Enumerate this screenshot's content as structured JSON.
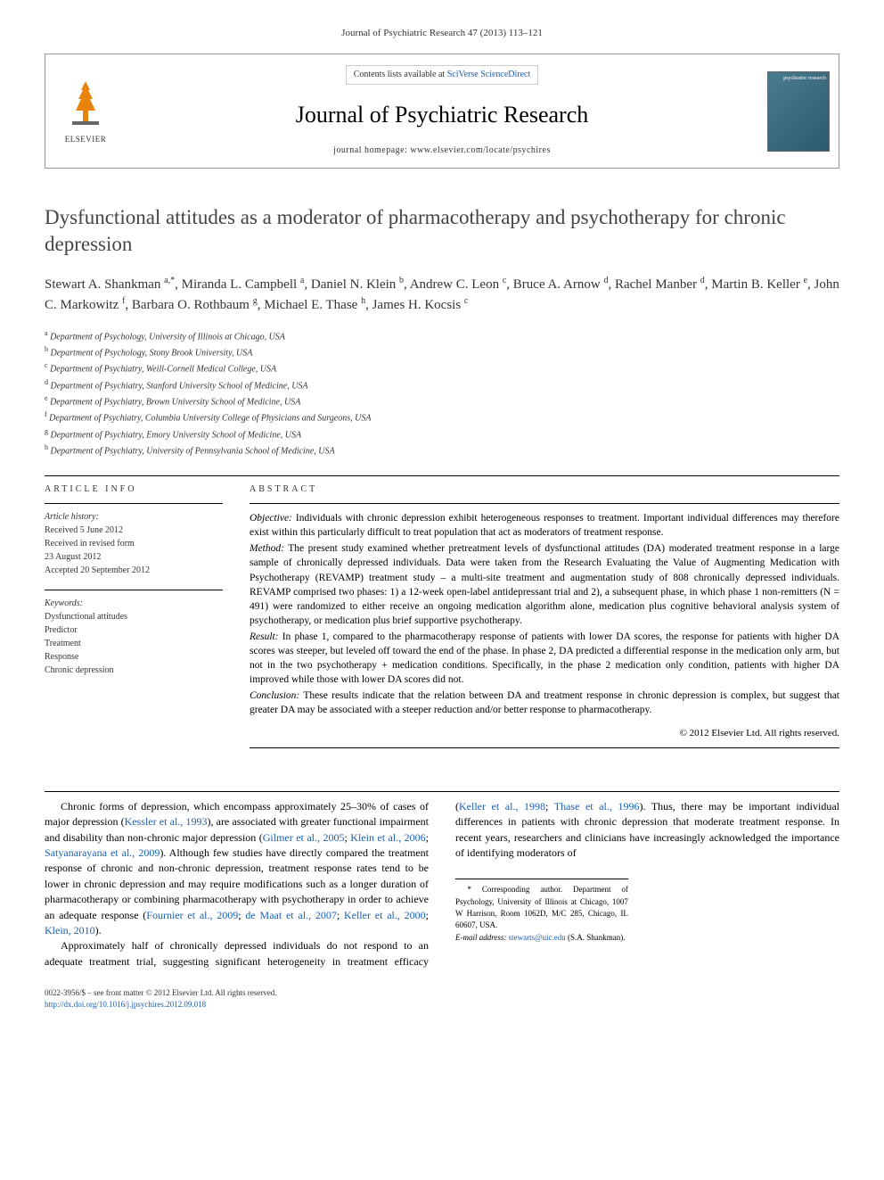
{
  "citation": "Journal of Psychiatric Research 47 (2013) 113–121",
  "header": {
    "contents_prefix": "Contents lists available at ",
    "contents_link": "SciVerse ScienceDirect",
    "journal_name": "Journal of Psychiatric Research",
    "homepage_prefix": "journal homepage: ",
    "homepage_url": "www.elsevier.com/locate/psychires",
    "publisher_label": "ELSEVIER",
    "cover_label": "psychiatric research"
  },
  "title": "Dysfunctional attitudes as a moderator of pharmacotherapy and psychotherapy for chronic depression",
  "authors_html": "Stewart A. Shankman <span class='sup'>a,*</span>, Miranda L. Campbell <span class='sup'>a</span>, Daniel N. Klein <span class='sup'>b</span>, Andrew C. Leon <span class='sup'>c</span>, Bruce A. Arnow <span class='sup'>d</span>, Rachel Manber <span class='sup'>d</span>, Martin B. Keller <span class='sup'>e</span>, John C. Markowitz <span class='sup'>f</span>, Barbara O. Rothbaum <span class='sup'>g</span>, Michael E. Thase <span class='sup'>h</span>, James H. Kocsis <span class='sup'>c</span>",
  "affiliations": [
    {
      "sup": "a",
      "text": "Department of Psychology, University of Illinois at Chicago, USA"
    },
    {
      "sup": "b",
      "text": "Department of Psychology, Stony Brook University, USA"
    },
    {
      "sup": "c",
      "text": "Department of Psychiatry, Weill-Cornell Medical College, USA"
    },
    {
      "sup": "d",
      "text": "Department of Psychiatry, Stanford University School of Medicine, USA"
    },
    {
      "sup": "e",
      "text": "Department of Psychiatry, Brown University School of Medicine, USA"
    },
    {
      "sup": "f",
      "text": "Department of Psychiatry, Columbia University College of Physicians and Surgeons, USA"
    },
    {
      "sup": "g",
      "text": "Department of Psychiatry, Emory University School of Medicine, USA"
    },
    {
      "sup": "h",
      "text": "Department of Psychiatry, University of Pennsylvania School of Medicine, USA"
    }
  ],
  "article_info": {
    "head": "ARTICLE INFO",
    "history_label": "Article history:",
    "history": [
      "Received 5 June 2012",
      "Received in revised form",
      "23 August 2012",
      "Accepted 20 September 2012"
    ],
    "keywords_label": "Keywords:",
    "keywords": [
      "Dysfunctional attitudes",
      "Predictor",
      "Treatment",
      "Response",
      "Chronic depression"
    ]
  },
  "abstract": {
    "head": "ABSTRACT",
    "sections": [
      {
        "label": "Objective:",
        "text": "Individuals with chronic depression exhibit heterogeneous responses to treatment. Important individual differences may therefore exist within this particularly difficult to treat population that act as moderators of treatment response."
      },
      {
        "label": "Method:",
        "text": "The present study examined whether pretreatment levels of dysfunctional attitudes (DA) moderated treatment response in a large sample of chronically depressed individuals. Data were taken from the Research Evaluating the Value of Augmenting Medication with Psychotherapy (REVAMP) treatment study – a multi-site treatment and augmentation study of 808 chronically depressed individuals. REVAMP comprised two phases: 1) a 12-week open-label antidepressant trial and 2), a subsequent phase, in which phase 1 non-remitters (N = 491) were randomized to either receive an ongoing medication algorithm alone, medication plus cognitive behavioral analysis system of psychotherapy, or medication plus brief supportive psychotherapy."
      },
      {
        "label": "Result:",
        "text": "In phase 1, compared to the pharmacotherapy response of patients with lower DA scores, the response for patients with higher DA scores was steeper, but leveled off toward the end of the phase. In phase 2, DA predicted a differential response in the medication only arm, but not in the two psychotherapy + medication conditions. Specifically, in the phase 2 medication only condition, patients with higher DA improved while those with lower DA scores did not."
      },
      {
        "label": "Conclusion:",
        "text": "These results indicate that the relation between DA and treatment response in chronic depression is complex, but suggest that greater DA may be associated with a steeper reduction and/or better response to pharmacotherapy."
      }
    ],
    "copyright": "© 2012 Elsevier Ltd. All rights reserved."
  },
  "body": {
    "p1_pre": "Chronic forms of depression, which encompass approximately 25–30% of cases of major depression (",
    "p1_link1": "Kessler et al., 1993",
    "p1_mid1": "), are associated with greater functional impairment and disability than non-chronic major depression (",
    "p1_link2": "Gilmer et al., 2005",
    "p1_sep1": "; ",
    "p1_link3": "Klein et al., 2006",
    "p1_sep2": "; ",
    "p1_link4": "Satyanarayana et al., 2009",
    "p1_mid2": "). Although few studies have directly compared the treatment response of chronic and non-chronic depression, treatment response rates tend to be lower in chronic depression and may require modifications such as a longer duration of pharmacotherapy or combining pharmacotherapy with psychotherapy in order to achieve an adequate response (",
    "p1_link5": "Fournier et al., 2009",
    "p1_sep3": "; ",
    "p1_link6": "de Maat et al., 2007",
    "p1_sep4": "; ",
    "p1_link7": "Keller et al., 2000",
    "p1_sep5": "; ",
    "p1_link8": "Klein, 2010",
    "p1_post": ").",
    "p2_pre": "Approximately half of chronically depressed individuals do not respond to an adequate treatment trial, suggesting significant heterogeneity in treatment efficacy (",
    "p2_link1": "Keller et al., 1998",
    "p2_sep1": "; ",
    "p2_link2": "Thase et al., 1996",
    "p2_post": "). Thus, there may be important individual differences in patients with chronic depression that moderate treatment response. In recent years, researchers and clinicians have increasingly acknowledged the importance of identifying moderators of"
  },
  "corresponding": {
    "line1_pre": "* Corresponding author. Department of Psychology, University of Illinois at Chicago, 1007 W Harrison, Room 1062D, M/C 285, Chicago, IL 60607, USA.",
    "email_label": "E-mail address: ",
    "email": "stewarts@uic.edu",
    "email_post": " (S.A. Shankman)."
  },
  "footer": {
    "line1": "0022-3956/$ – see front matter © 2012 Elsevier Ltd. All rights reserved.",
    "doi": "http://dx.doi.org/10.1016/j.jpsychires.2012.09.018"
  },
  "colors": {
    "link": "#1a5fb4",
    "text": "#000000",
    "muted": "#333333",
    "border": "#999999"
  }
}
